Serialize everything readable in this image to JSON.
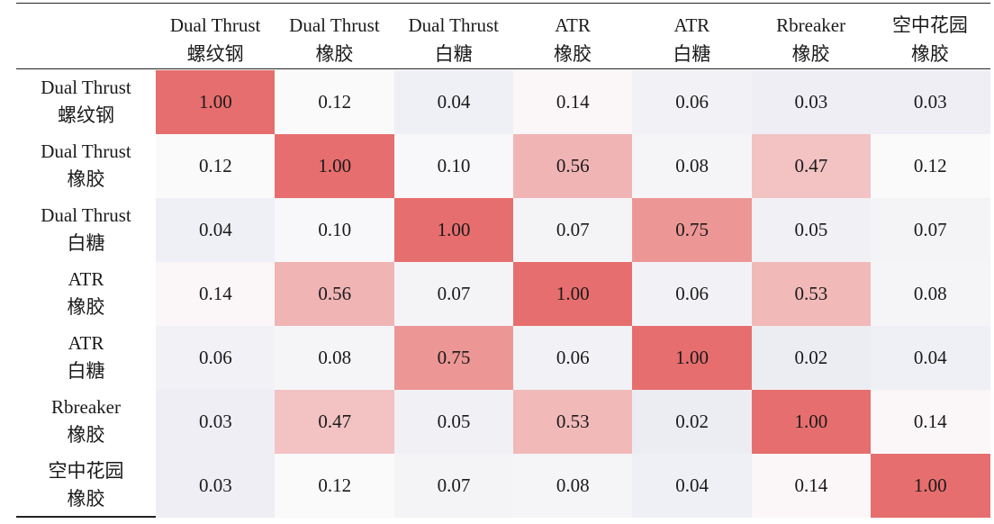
{
  "chart_data": {
    "type": "heatmap",
    "columns": [
      {
        "line1": "Dual Thrust",
        "line2": "螺纹钢"
      },
      {
        "line1": "Dual Thrust",
        "line2": "橡胶"
      },
      {
        "line1": "Dual Thrust",
        "line2": "白糖"
      },
      {
        "line1": "ATR",
        "line2": "橡胶"
      },
      {
        "line1": "ATR",
        "line2": "白糖"
      },
      {
        "line1": "Rbreaker",
        "line2": "橡胶"
      },
      {
        "line1": "空中花园",
        "line2": "橡胶"
      }
    ],
    "rows": [
      {
        "line1": "Dual Thrust",
        "line2": "螺纹钢"
      },
      {
        "line1": "Dual Thrust",
        "line2": "橡胶"
      },
      {
        "line1": "Dual Thrust",
        "line2": "白糖"
      },
      {
        "line1": "ATR",
        "line2": "橡胶"
      },
      {
        "line1": "ATR",
        "line2": "白糖"
      },
      {
        "line1": "Rbreaker",
        "line2": "橡胶"
      },
      {
        "line1": "空中花园",
        "line2": "橡胶"
      }
    ],
    "values": [
      [
        "1.00",
        "0.12",
        "0.04",
        "0.14",
        "0.06",
        "0.03",
        "0.03"
      ],
      [
        "0.12",
        "1.00",
        "0.10",
        "0.56",
        "0.08",
        "0.47",
        "0.12"
      ],
      [
        "0.04",
        "0.10",
        "1.00",
        "0.07",
        "0.75",
        "0.05",
        "0.07"
      ],
      [
        "0.14",
        "0.56",
        "0.07",
        "1.00",
        "0.06",
        "0.53",
        "0.08"
      ],
      [
        "0.06",
        "0.08",
        "0.75",
        "0.06",
        "1.00",
        "0.02",
        "0.04"
      ],
      [
        "0.03",
        "0.47",
        "0.05",
        "0.53",
        "0.02",
        "1.00",
        "0.14"
      ],
      [
        "0.03",
        "0.12",
        "0.07",
        "0.08",
        "0.04",
        "0.14",
        "1.00"
      ]
    ],
    "color_scale": {
      "low": "#ecedf3",
      "mid": "#fbfafb",
      "high": "#e76e6e"
    }
  }
}
